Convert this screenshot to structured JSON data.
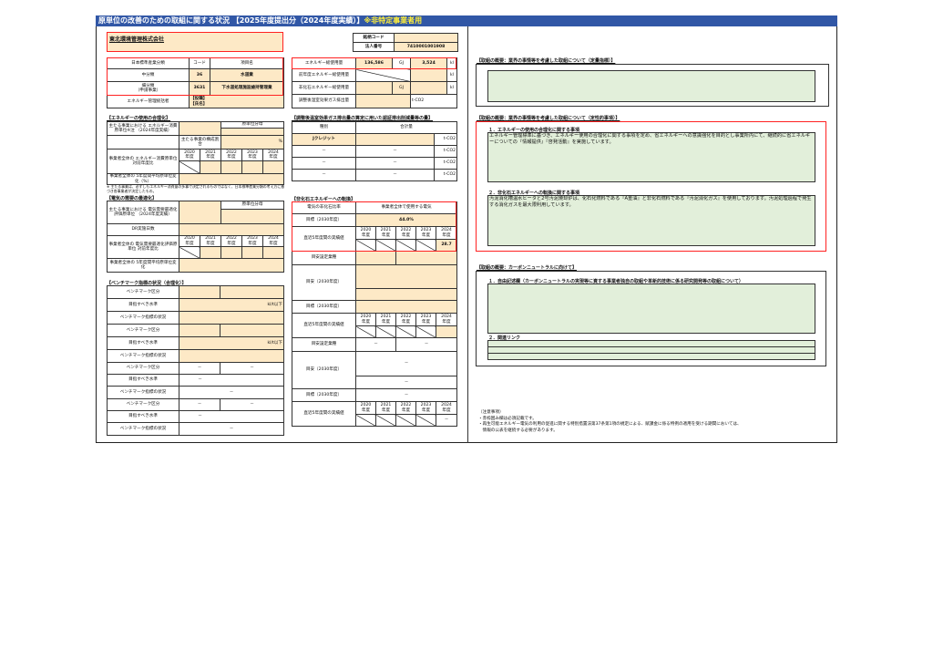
{
  "title": {
    "main": "原単位の改善のための取組に関する状況 【2025年度提出分（2024年度実績）】",
    "sub": "※非特定事業者用"
  },
  "company": {
    "name": "東北環境管理株式会社"
  },
  "ids": {
    "brand_code_label": "銘柄コード",
    "brand_code": "",
    "corp_no_label": "法人番号",
    "corp_no": "7410001001908"
  },
  "industry": {
    "h1": "日本標準産業分類",
    "h2": "コード",
    "h3": "項目名",
    "mid_label": "中分類",
    "mid_code": "36",
    "mid_name": "水道業",
    "sub_label": "細分類\n（申請事業）",
    "sub_code": "3631",
    "sub_name": "下水道処理施設維持管理業",
    "manager_label": "エネルギー管理統括者",
    "manager_pos": "【役職】",
    "manager_name": "【氏名】"
  },
  "energy_totals": {
    "total_label": "エネルギー総使用量",
    "total_gj": "136,586",
    "gj": "GJ",
    "total_kl": "3,524",
    "kl": "kl",
    "prev_label": "前年度エネルギー総使用量",
    "nonfossil_label": "非化石エネルギー総使用量",
    "ghg_label": "調整後温室効果ガス排出量",
    "tco2": "t-CO2"
  },
  "rational": {
    "heading": "【エネルギーの使用の合理化】",
    "main_label": "主たる事業における エネルギー消費原単位※注 （2024年度実績）",
    "denom": "原単位分母",
    "ratio_label": "主たる事業の構成割合",
    "pct": "%",
    "yoy_label": "事業者全体の エネルギー消費原単位 対前年度比",
    "years": [
      "2020\n年度",
      "2021\n年度",
      "2022\n年度",
      "2023\n年度",
      "2024\n年度"
    ],
    "avg_label": "事業者全体の 5年度間平均原単位変化（%）",
    "note": "※ 主たる事業は、必ずしもエネルギー消費量の多寡で決定されるものではなく、日本標準産業分類の考え方に基づき各事業者が決定したもの。"
  },
  "electric": {
    "heading": "【電気の需要の最適化】",
    "main_label": "主たる事業における 電気需要最適化評価原単位 （2024年度実績）",
    "denom": "原単位分母",
    "dr_label": "DR実施日数",
    "yoy_label": "事業者全体の 電気需要最適化評価原単位 対前年度比",
    "avg_label": "事業者全体の 5年度間平均原単位変化"
  },
  "benchmark": {
    "heading": "【ベンチマーク指標の状況（合理化）】",
    "rows": [
      {
        "label": "ベンチマーク区分",
        "a": "",
        "b": ""
      },
      {
        "label": "目指すべき水準",
        "unit": "kl/t以下"
      },
      {
        "label": "ベンチマーク指標の状況",
        "v": ""
      },
      {
        "label": "ベンチマーク区分",
        "a": "",
        "b": ""
      },
      {
        "label": "目指すべき水準",
        "unit": "kl/t以下"
      },
      {
        "label": "ベンチマーク指標の状況",
        "v": ""
      },
      {
        "label": "ベンチマーク区分",
        "a": "－",
        "b": "－"
      },
      {
        "label": "目指すべき水準",
        "v": "－"
      },
      {
        "label": "ベンチマーク指標の状況",
        "v": "－"
      },
      {
        "label": "ベンチマーク区分",
        "a": "－",
        "b": "－"
      },
      {
        "label": "目指すべき水準",
        "v": "－"
      },
      {
        "label": "ベンチマーク指標の状況",
        "v": "－"
      }
    ]
  },
  "ghg": {
    "heading": "【調整後温室効果ガス排出量の算定に用いた認証排出削減量等の量】",
    "h1": "種別",
    "h2": "合計量",
    "rows": [
      {
        "type": "Jクレジット",
        "unit": "t-CO2"
      },
      {
        "type": "－",
        "v": "－",
        "unit": "t-CO2"
      },
      {
        "type": "－",
        "v": "－",
        "unit": "t-CO2"
      },
      {
        "type": "－",
        "v": "－",
        "unit": "t-CO2"
      }
    ]
  },
  "nonfossil": {
    "heading": "【非化石エネルギーへの転換】",
    "ratio_label": "電気の非化石比率",
    "ratio_scope": "事業者全体で使用する電気",
    "target_label": "目標（2030年度）",
    "target": "44.0%",
    "actual_label": "直近5年度間の実績値",
    "actual_2024": "28.7",
    "guide_industry": "目安設定業種",
    "guide_label": "目安（2030年度）",
    "dash": "－"
  },
  "right": {
    "quant_heading": "【取組の概要：業界の事情等を考慮した取組について（定量指標）】",
    "quant_text": "",
    "qual_heading": "【取組の概要：業界の事情等を考慮した取組について（定性的事項）】",
    "qual1_title": "１．エネルギーの使用の合理化に関する事項",
    "qual1_text": "エネルギー管理標準に基づき、エネルギー使用の合理化に関する事項を定め、省エネルギーへの意識強化を目的とし事業所内にて、継続的に省エネルギーについての『情報提供』『啓発活動』を実施しています。",
    "qual2_title": "２．非化石エネルギーへの転換に関する事項",
    "qual2_text": "汚泥消化槽温水ヒータと2号汚泥焼却炉は、化石化燃料である『A重油』と非化石燃料である『汚泥消化ガス』を使用しております。汚泥処理過程で発生する消化ガスを最大限利用しています。",
    "cn_heading": "【取組の概要：カーボンニュートラルに向けて】",
    "cn1_title": "１．自由記述欄（カーボンニュートラルの実現等に資する事業者独自の取組や革新的技術に係る研究開発等の取組について）",
    "cn2_title": "２．関連リンク",
    "notes": [
      "（注意事項）",
      "・赤枠囲み欄は必須記載です。",
      "・再生可能エネルギー電気の利用の促進に関する特別措置法第37条第1項の規定による、賦課金に係る特例の適用を受ける期間においては、",
      "　情報の公表を継続する必要があります。"
    ]
  },
  "colors": {
    "title_bar": "#3157a6",
    "input_fill": "#fde9c6",
    "text_fill": "#e2efda",
    "required_border": "#ff2222"
  }
}
